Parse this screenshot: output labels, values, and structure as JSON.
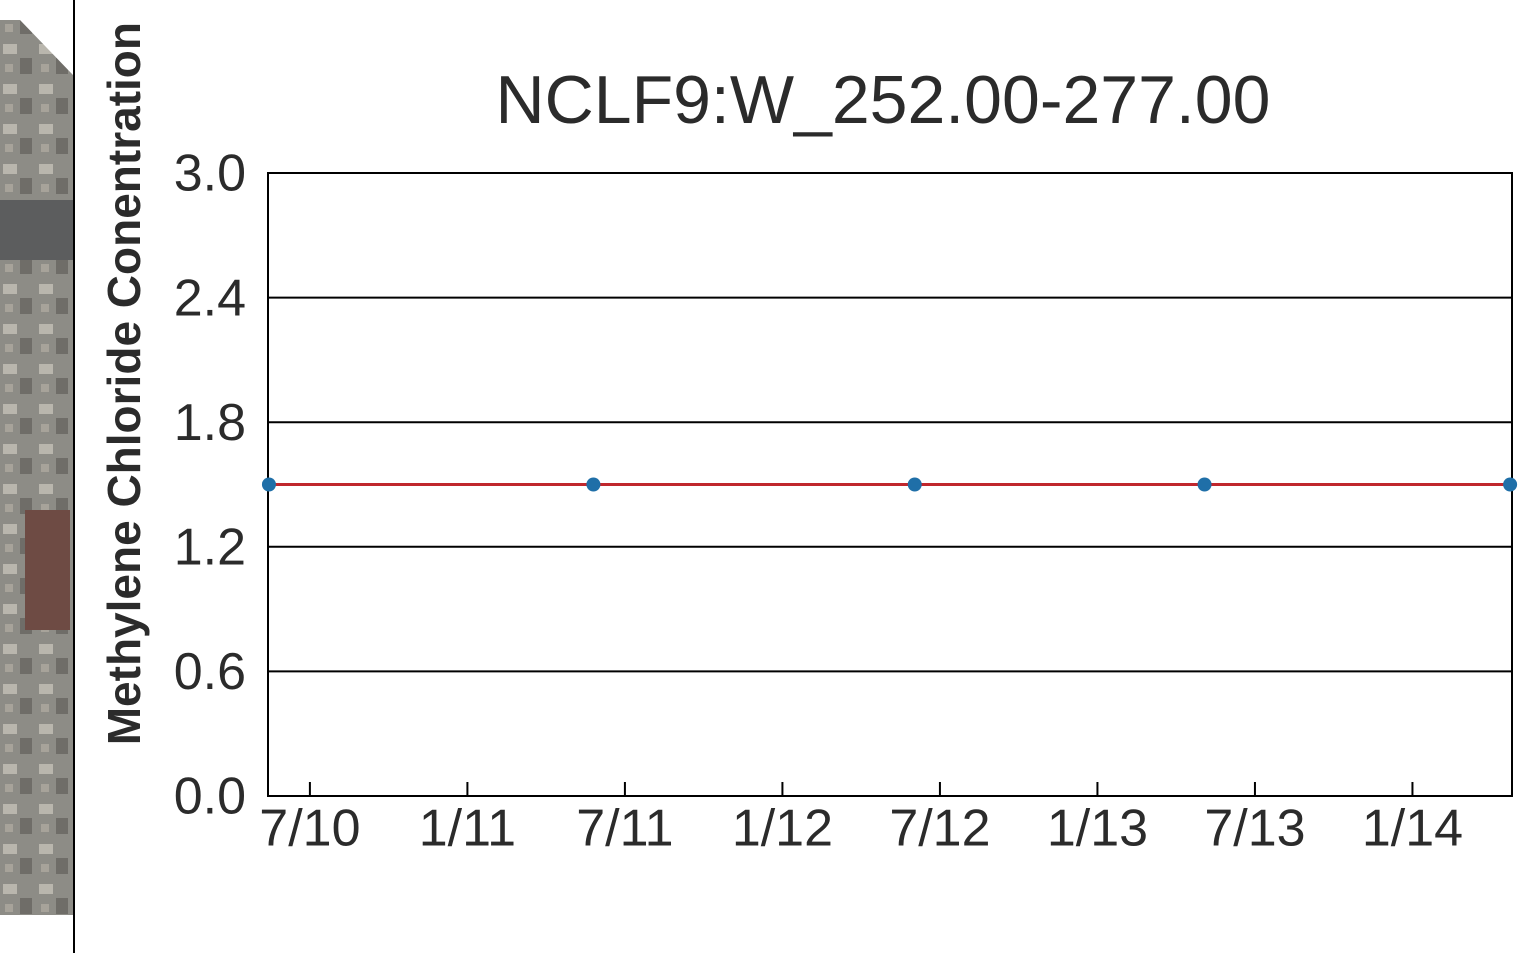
{
  "chart_data": {
    "type": "line",
    "title": "NCLF9:W_252.00-277.00",
    "y_label": "Methylene Chloride Conentration",
    "x": [
      2010.37,
      2011.4,
      2012.42,
      2013.34,
      2014.31
    ],
    "series": [
      {
        "name": "NCLF9:W_252.00-277.00",
        "color": "#c0272d",
        "marker_color": "#1f6fa8",
        "values": [
          1.5,
          1.5,
          1.5,
          1.5,
          1.5
        ]
      }
    ],
    "xlim": [
      2010.367,
      2014.316
    ],
    "xticks": [
      {
        "value": 2010.5,
        "label": "7/10"
      },
      {
        "value": 2011.0,
        "label": "1/11"
      },
      {
        "value": 2011.5,
        "label": "7/11"
      },
      {
        "value": 2012.0,
        "label": "1/12"
      },
      {
        "value": 2012.5,
        "label": "7/12"
      },
      {
        "value": 2013.0,
        "label": "1/13"
      },
      {
        "value": 2013.5,
        "label": "7/13"
      },
      {
        "value": 2014.0,
        "label": "1/14"
      }
    ],
    "ylim": [
      0,
      3
    ],
    "yticks": [
      {
        "value": 0,
        "label": "0.0"
      },
      {
        "value": 0.6,
        "label": "0.6"
      },
      {
        "value": 1.2,
        "label": "1.2"
      },
      {
        "value": 1.8,
        "label": "1.8"
      },
      {
        "value": 2.4,
        "label": "2.4"
      },
      {
        "value": 3,
        "label": "3.0"
      }
    ],
    "grid": true,
    "legend": false
  }
}
